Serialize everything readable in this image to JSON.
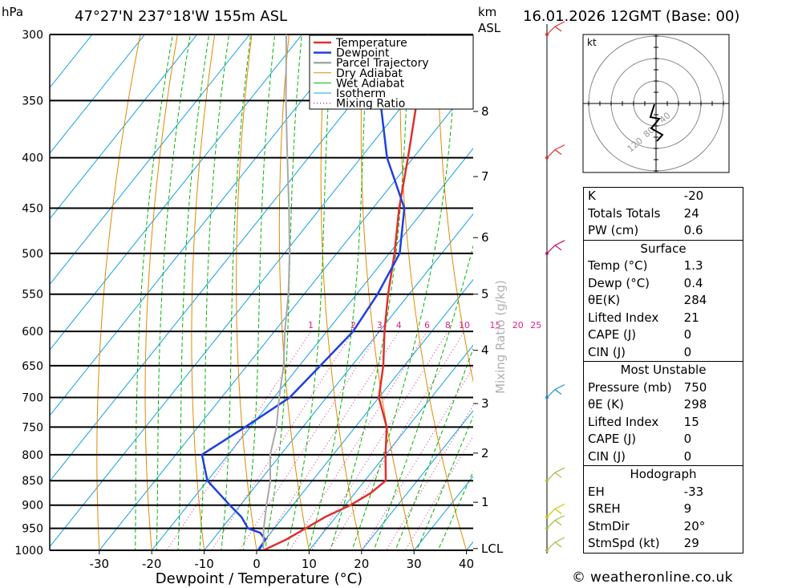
{
  "header": {
    "location": "47°27'N  237°18'W  155m  ASL",
    "run": "16.01.2026  12GMT  (Base: 00)",
    "unit_hpa": "hPa",
    "unit_km": "km",
    "unit_asl": "ASL"
  },
  "chart_data": {
    "type": "line",
    "title": "",
    "xlabel": "Dewpoint / Temperature (°C)",
    "ylabel": "hPa",
    "y2label": "Mixing Ratio (g/kg)",
    "x_ticks": [
      -30,
      -20,
      -10,
      0,
      10,
      20,
      30,
      40
    ],
    "pressure_levels": [
      300,
      350,
      400,
      450,
      500,
      550,
      600,
      650,
      700,
      750,
      800,
      850,
      900,
      950,
      1000
    ],
    "km_ticks": [
      {
        "km": "8",
        "p": 359
      },
      {
        "km": "7",
        "p": 418
      },
      {
        "km": "6",
        "p": 482
      },
      {
        "km": "5",
        "p": 550
      },
      {
        "km": "4",
        "p": 627
      },
      {
        "km": "3",
        "p": 710
      },
      {
        "km": "2",
        "p": 797
      },
      {
        "km": "1",
        "p": 894
      },
      {
        "km": "LCL",
        "p": 996
      }
    ],
    "mixing_ratio_labels": [
      "1",
      "2",
      "3",
      "4",
      "6",
      "8",
      "10",
      "15",
      "20",
      "25"
    ],
    "mixing_ratio_values": [
      1,
      2,
      3,
      4,
      6,
      8,
      10,
      15,
      20,
      25
    ],
    "legend": [
      "Temperature",
      "Dewpoint",
      "Parcel Trajectory",
      "Dry Adiabat",
      "Wet Adiabat",
      "Isotherm",
      "Mixing Ratio"
    ],
    "legend_position": "top-right",
    "colors": {
      "temperature": "#e03030",
      "dewpoint": "#2040e0",
      "parcel": "#a8a8a8",
      "dry_adiabat": "#e08a00",
      "wet_adiabat": "#00b400",
      "isotherm": "#14a0e6",
      "mixing_ratio": "#e0208c"
    },
    "series": [
      {
        "name": "Temperature",
        "points": [
          [
            1000,
            1.3
          ],
          [
            975,
            4
          ],
          [
            950,
            6
          ],
          [
            925,
            8
          ],
          [
            900,
            11
          ],
          [
            875,
            13
          ],
          [
            850,
            14
          ],
          [
            800,
            10
          ],
          [
            750,
            6
          ],
          [
            700,
            0
          ],
          [
            650,
            -4
          ],
          [
            600,
            -9
          ],
          [
            550,
            -14
          ],
          [
            500,
            -19
          ],
          [
            450,
            -25
          ],
          [
            400,
            -31
          ],
          [
            350,
            -38
          ],
          [
            300,
            -46
          ]
        ]
      },
      {
        "name": "Dewpoint",
        "points": [
          [
            1000,
            0.4
          ],
          [
            975,
            0
          ],
          [
            960,
            -2
          ],
          [
            950,
            -5
          ],
          [
            925,
            -8
          ],
          [
            900,
            -12
          ],
          [
            850,
            -20
          ],
          [
            800,
            -25
          ],
          [
            750,
            -21
          ],
          [
            700,
            -17
          ],
          [
            650,
            -16
          ],
          [
            600,
            -15
          ],
          [
            550,
            -16
          ],
          [
            500,
            -18
          ],
          [
            450,
            -24
          ],
          [
            400,
            -35
          ],
          [
            350,
            -45
          ],
          [
            300,
            -57
          ]
        ]
      },
      {
        "name": "Parcel Trajectory",
        "points": [
          [
            1000,
            1.3
          ],
          [
            996,
            1
          ],
          [
            950,
            -2
          ],
          [
            900,
            -5
          ],
          [
            850,
            -8
          ],
          [
            800,
            -12
          ],
          [
            750,
            -15
          ],
          [
            700,
            -19
          ],
          [
            650,
            -23
          ],
          [
            600,
            -28
          ],
          [
            550,
            -33
          ],
          [
            500,
            -39
          ],
          [
            450,
            -46
          ],
          [
            400,
            -54
          ],
          [
            350,
            -63
          ],
          [
            300,
            -73
          ]
        ]
      }
    ],
    "hodograph": {
      "unit": "kt",
      "ring_labels": [
        "40",
        "80",
        "120"
      ]
    }
  },
  "indices": {
    "k_label": "K",
    "k": "-20",
    "tt_label": "Totals Totals",
    "tt": "24",
    "pw_label": "PW (cm)",
    "pw": "0.6",
    "surface": {
      "title": "Surface",
      "temp_label": "Temp (°C)",
      "temp": "1.3",
      "dewp_label": "Dewp (°C)",
      "dewp": "0.4",
      "thetae_label": "θE(K)",
      "thetae": "284",
      "li_label": "Lifted Index",
      "li": "21",
      "cape_label": "CAPE (J)",
      "cape": "0",
      "cin_label": "CIN (J)",
      "cin": "0"
    },
    "most_unstable": {
      "title": "Most Unstable",
      "pres_label": "Pressure (mb)",
      "pres": "750",
      "thetae_label": "θE (K)",
      "thetae": "298",
      "li_label": "Lifted Index",
      "li": "15",
      "cape_label": "CAPE (J)",
      "cape": "0",
      "cin_label": "CIN (J)",
      "cin": "0"
    },
    "hodograph": {
      "title": "Hodograph",
      "eh_label": "EH",
      "eh": "-33",
      "sreh_label": "SREH",
      "sreh": "9",
      "stmdir_label": "StmDir",
      "stmdir": "20°",
      "stmspd_label": "StmSpd (kt)",
      "stmspd": "29"
    }
  },
  "footer": {
    "copyright": "© weatheronline.co.uk"
  }
}
